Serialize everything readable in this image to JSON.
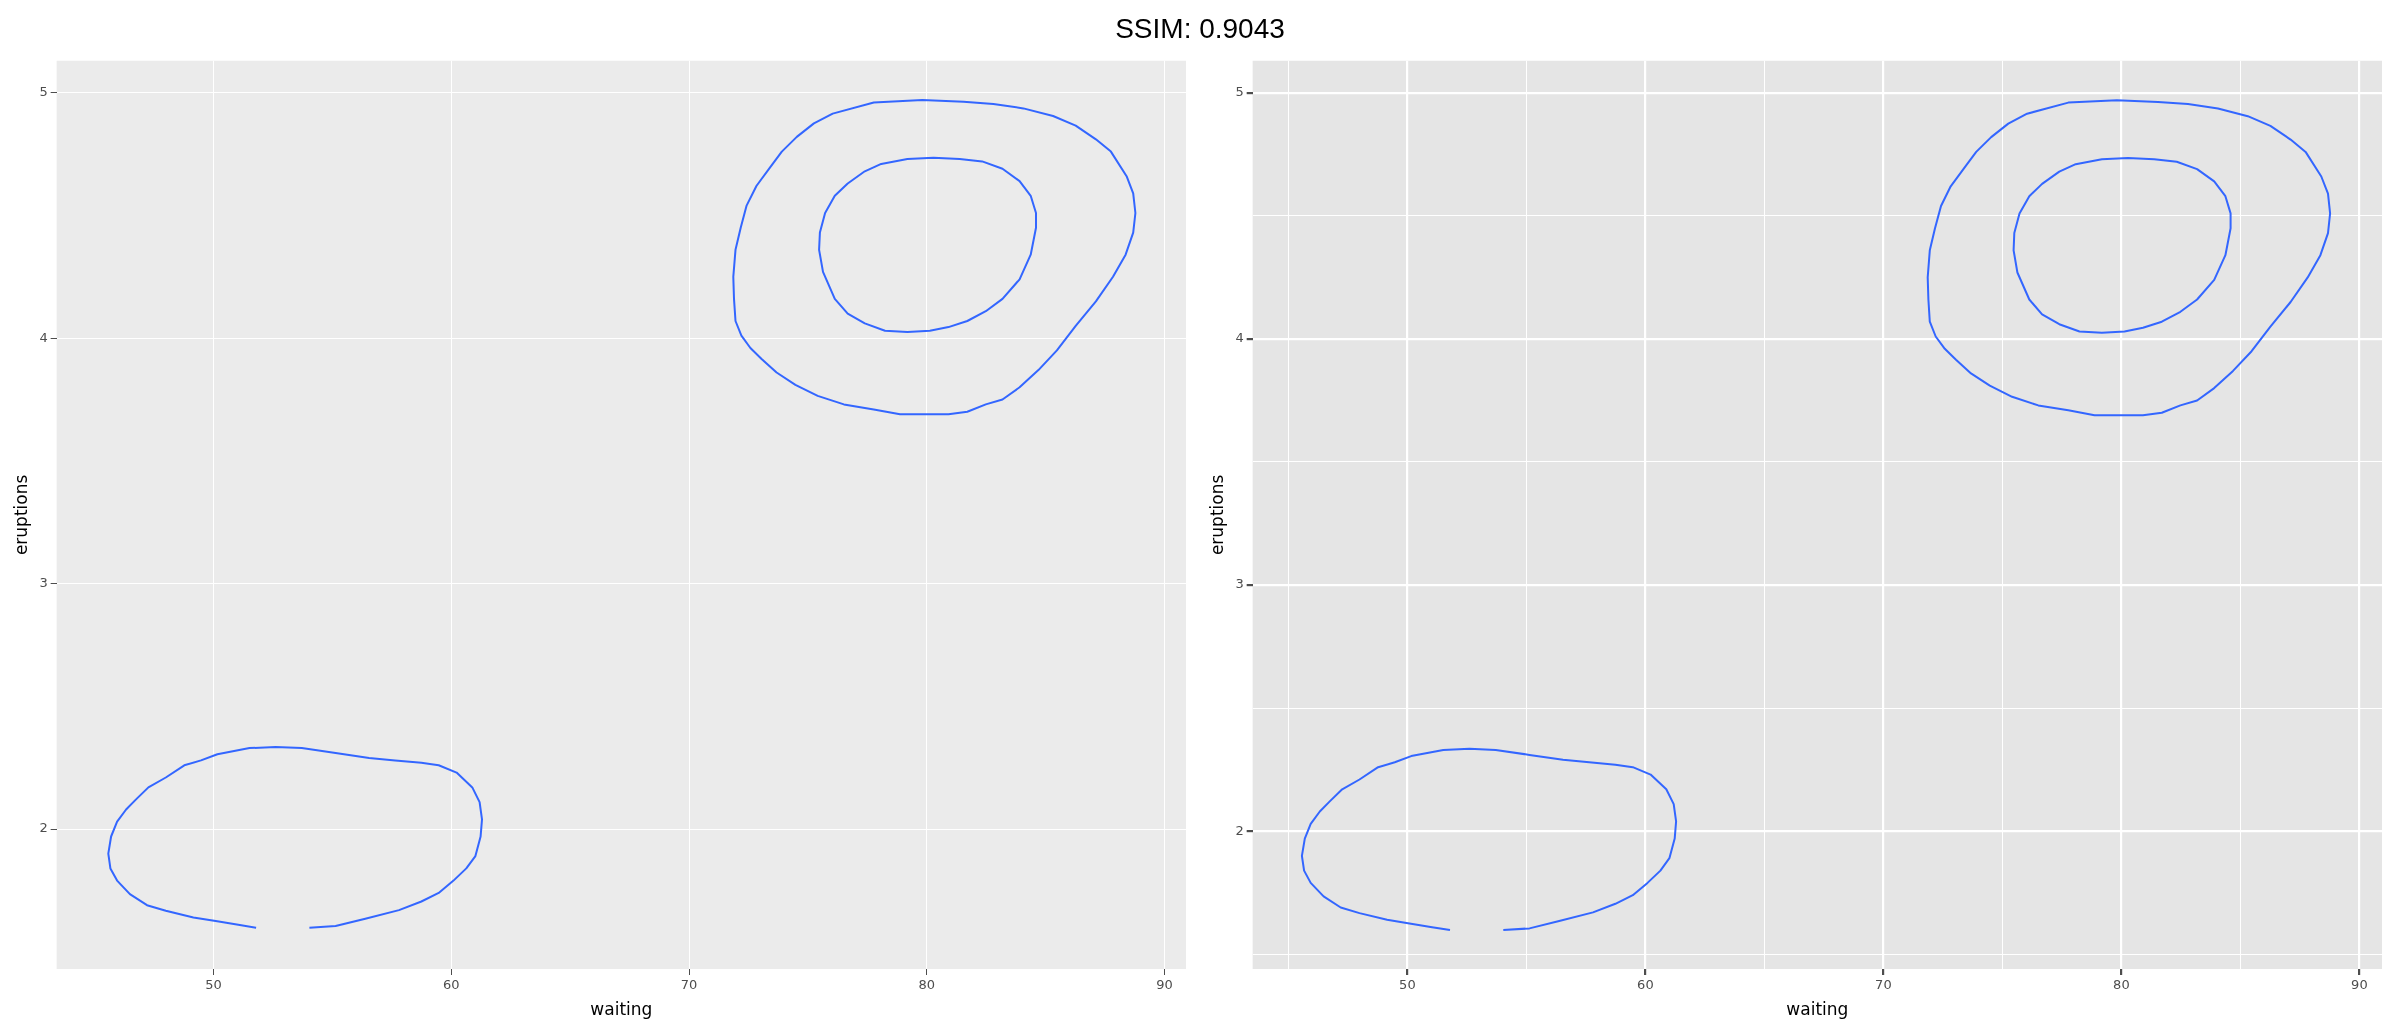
{
  "chart_data": [
    {
      "type": "line",
      "title": "SSIM: 0.9043",
      "xlabel": "waiting",
      "ylabel": "eruptions",
      "xlim": [
        43.4,
        90.9
      ],
      "ylim": [
        1.43,
        5.13
      ],
      "xticks": [
        50,
        60,
        70,
        80,
        90
      ],
      "yticks": [
        2,
        3,
        4,
        5
      ],
      "grid": true
    },
    {
      "type": "line",
      "xlabel": "waiting",
      "ylabel": "eruptions",
      "xlim": [
        43.5,
        90.95
      ],
      "ylim": [
        1.44,
        5.13
      ],
      "xticks": [
        {
          "value": 45,
          "label": null
        },
        50,
        {
          "value": 55,
          "label": null
        },
        60,
        {
          "value": 65,
          "label": null
        },
        70,
        {
          "value": 75,
          "label": null
        },
        80,
        {
          "value": 85,
          "label": null
        },
        90
      ],
      "yticks": [
        {
          "value": 1.5,
          "label": null
        },
        2,
        {
          "value": 2.5,
          "label": null
        },
        3,
        {
          "value": 3.5,
          "label": null
        },
        4,
        {
          "value": 4.5,
          "label": null
        },
        5
      ],
      "grid": true
    }
  ]
}
